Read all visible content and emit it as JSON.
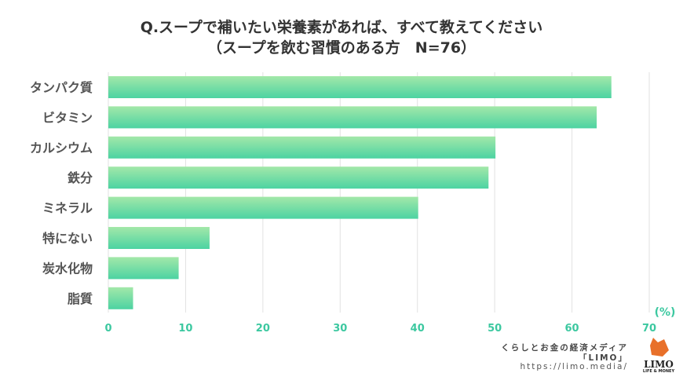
{
  "chart_data": {
    "type": "bar",
    "orientation": "horizontal",
    "title": "Q.スープで補いたい栄養素があれば、すべて教えてください",
    "subtitle": "（スープを飲む習慣のある方　N=76）",
    "categories": [
      "タンパク質",
      "ビタミン",
      "カルシウム",
      "鉄分",
      "ミネラル",
      "特にない",
      "炭水化物",
      "脂質"
    ],
    "values": [
      65.1,
      63.2,
      50.1,
      49.2,
      40.1,
      13.1,
      9.1,
      3.2
    ],
    "xlim": [
      0,
      70
    ],
    "xticks": [
      0,
      10,
      20,
      30,
      40,
      50,
      60,
      70
    ],
    "xlabel": "(%)",
    "grid": true,
    "colors": {
      "bar_top": "#a3e8a9",
      "bar_bottom": "#4cd3a2",
      "tick": "#3cc8a0"
    }
  },
  "credit": {
    "line1": "くらしとお金の経済メディア",
    "line2": "「LIMO」",
    "url": "https://limo.media/"
  },
  "logo": {
    "name": "LIMO",
    "tagline": "LIFE & MONEY"
  }
}
